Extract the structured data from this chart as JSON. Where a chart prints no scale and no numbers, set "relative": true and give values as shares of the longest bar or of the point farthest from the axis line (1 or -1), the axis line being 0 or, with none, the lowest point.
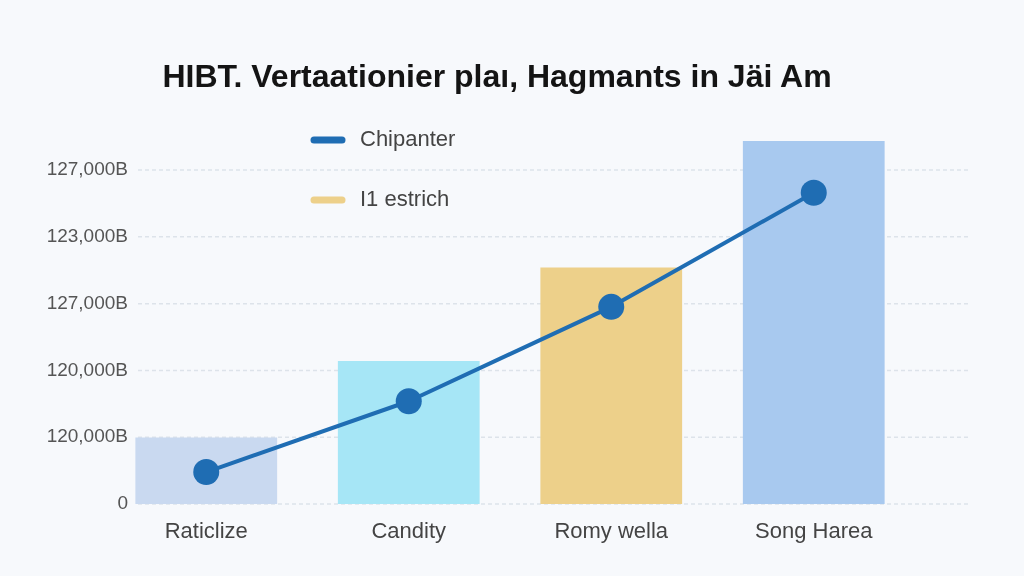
{
  "chart_data": {
    "type": "bar",
    "title": "HIBT. Vertaationier plaı, Hagmants in Jäi Am",
    "categories": [
      "Raticlize",
      "Candity",
      "Romy wella",
      "Song Harea"
    ],
    "series": [
      {
        "name": "Chipanter",
        "type": "line",
        "color": "#1f6db3",
        "values": [
          0.088,
          0.283,
          0.543,
          0.857
        ]
      },
      {
        "colors": [
          "#c9d9f0",
          "#a6e6f6",
          null,
          "#a8c9ef"
        ],
        "values": [
          0.183,
          0.394,
          null,
          1
        ]
      },
      {
        "name": "I1 estrich",
        "color": "#edd08a",
        "values": [
          null,
          null,
          0.651,
          null
        ]
      }
    ],
    "relative": true,
    "annotations": [
      "127,000B",
      "123,000B",
      "127,000B",
      "120,000B",
      "120,000B",
      "0"
    ],
    "grid": "y",
    "legend": "top left",
    "marker": "circle",
    "line_style": "solid"
  }
}
